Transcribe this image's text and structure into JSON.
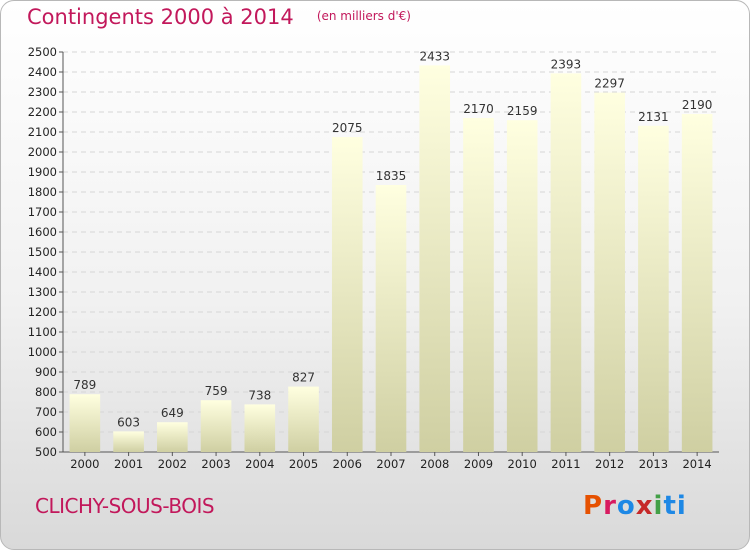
{
  "header": {
    "title": "Contingents 2000 à 2014",
    "unit": "(en milliers d'€)"
  },
  "footer": {
    "commune": "CLICHY-SOUS-BOIS",
    "logo": "Proxiti"
  },
  "colors": {
    "title": "#c2185b",
    "bar_top": "#ffffe0",
    "bar_bottom": "#cfcfa2",
    "logo_letters": [
      "#e65100",
      "#d81b60",
      "#1e88e5",
      "#c62828",
      "#43a047",
      "#1e88e5",
      "#1e88e5"
    ]
  },
  "chart_data": {
    "type": "bar",
    "title": "Contingents 2000 à 2014",
    "subtitle": "(en milliers d'€)",
    "categories": [
      "2000",
      "2001",
      "2002",
      "2003",
      "2004",
      "2005",
      "2006",
      "2007",
      "2008",
      "2009",
      "2010",
      "2011",
      "2012",
      "2013",
      "2014"
    ],
    "values": [
      789,
      603,
      649,
      759,
      738,
      827,
      2075,
      1835,
      2433,
      2170,
      2159,
      2393,
      2297,
      2131,
      2190
    ],
    "ylim": [
      500,
      2500
    ],
    "yticks": [
      500,
      600,
      700,
      800,
      900,
      1000,
      1100,
      1200,
      1300,
      1400,
      1500,
      1600,
      1700,
      1800,
      1900,
      2000,
      2100,
      2200,
      2300,
      2400,
      2500
    ],
    "grid": true,
    "xlabel": "",
    "ylabel": ""
  }
}
